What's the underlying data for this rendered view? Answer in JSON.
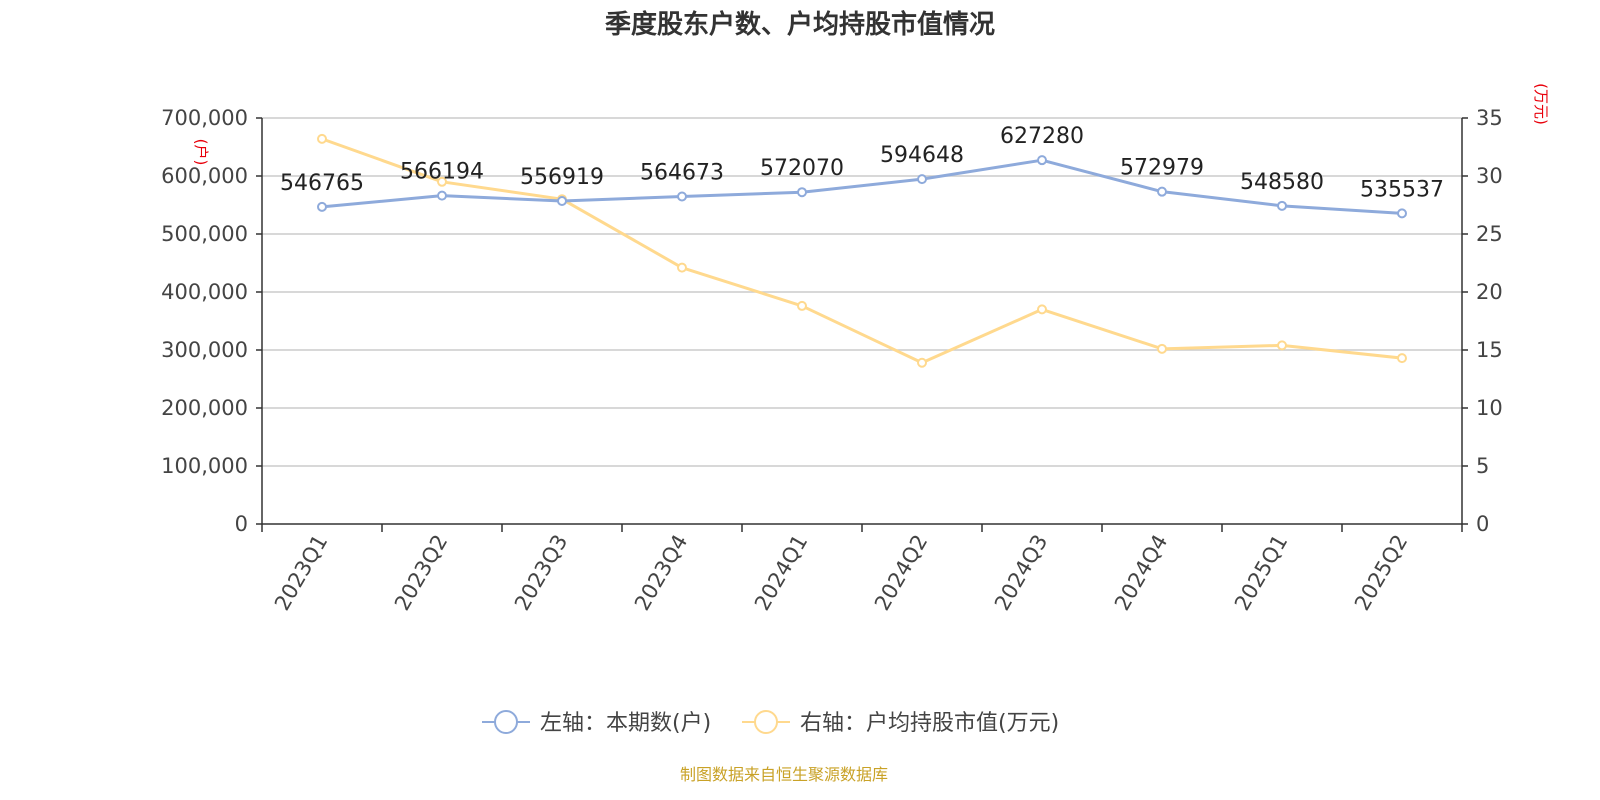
{
  "chart_data": {
    "type": "line",
    "title": "季度股东户数、户均持股市值情况",
    "categories": [
      "2023Q1",
      "2023Q2",
      "2023Q3",
      "2023Q4",
      "2024Q1",
      "2024Q2",
      "2024Q3",
      "2024Q4",
      "2025Q1",
      "2025Q2"
    ],
    "left_axis": {
      "unit_label": "(户)",
      "ylim": [
        0,
        700000
      ],
      "ticks": [
        "0",
        "100,000",
        "200,000",
        "300,000",
        "400,000",
        "500,000",
        "600,000",
        "700,000"
      ]
    },
    "right_axis": {
      "unit_label": "(万元)",
      "ylim": [
        0,
        35
      ],
      "ticks": [
        "0",
        "5",
        "10",
        "15",
        "20",
        "25",
        "30",
        "35"
      ]
    },
    "series": [
      {
        "name": "左轴：本期数(户)",
        "axis": "left",
        "color": "#8eaadb",
        "values": [
          546765,
          566194,
          556919,
          564673,
          572070,
          594648,
          627280,
          572979,
          548580,
          535537
        ],
        "labels": [
          "546765",
          "566194",
          "556919",
          "564673",
          "572070",
          "594648",
          "627280",
          "572979",
          "548580",
          "535537"
        ]
      },
      {
        "name": "右轴：户均持股市值(万元)",
        "axis": "right",
        "color": "#ffd98e",
        "values": [
          33.2,
          29.5,
          28.0,
          22.1,
          18.8,
          13.9,
          18.5,
          15.1,
          15.4,
          14.3
        ]
      }
    ],
    "grid": true,
    "legend_position": "bottom-center",
    "source": "制图数据来自恒生聚源数据库"
  }
}
